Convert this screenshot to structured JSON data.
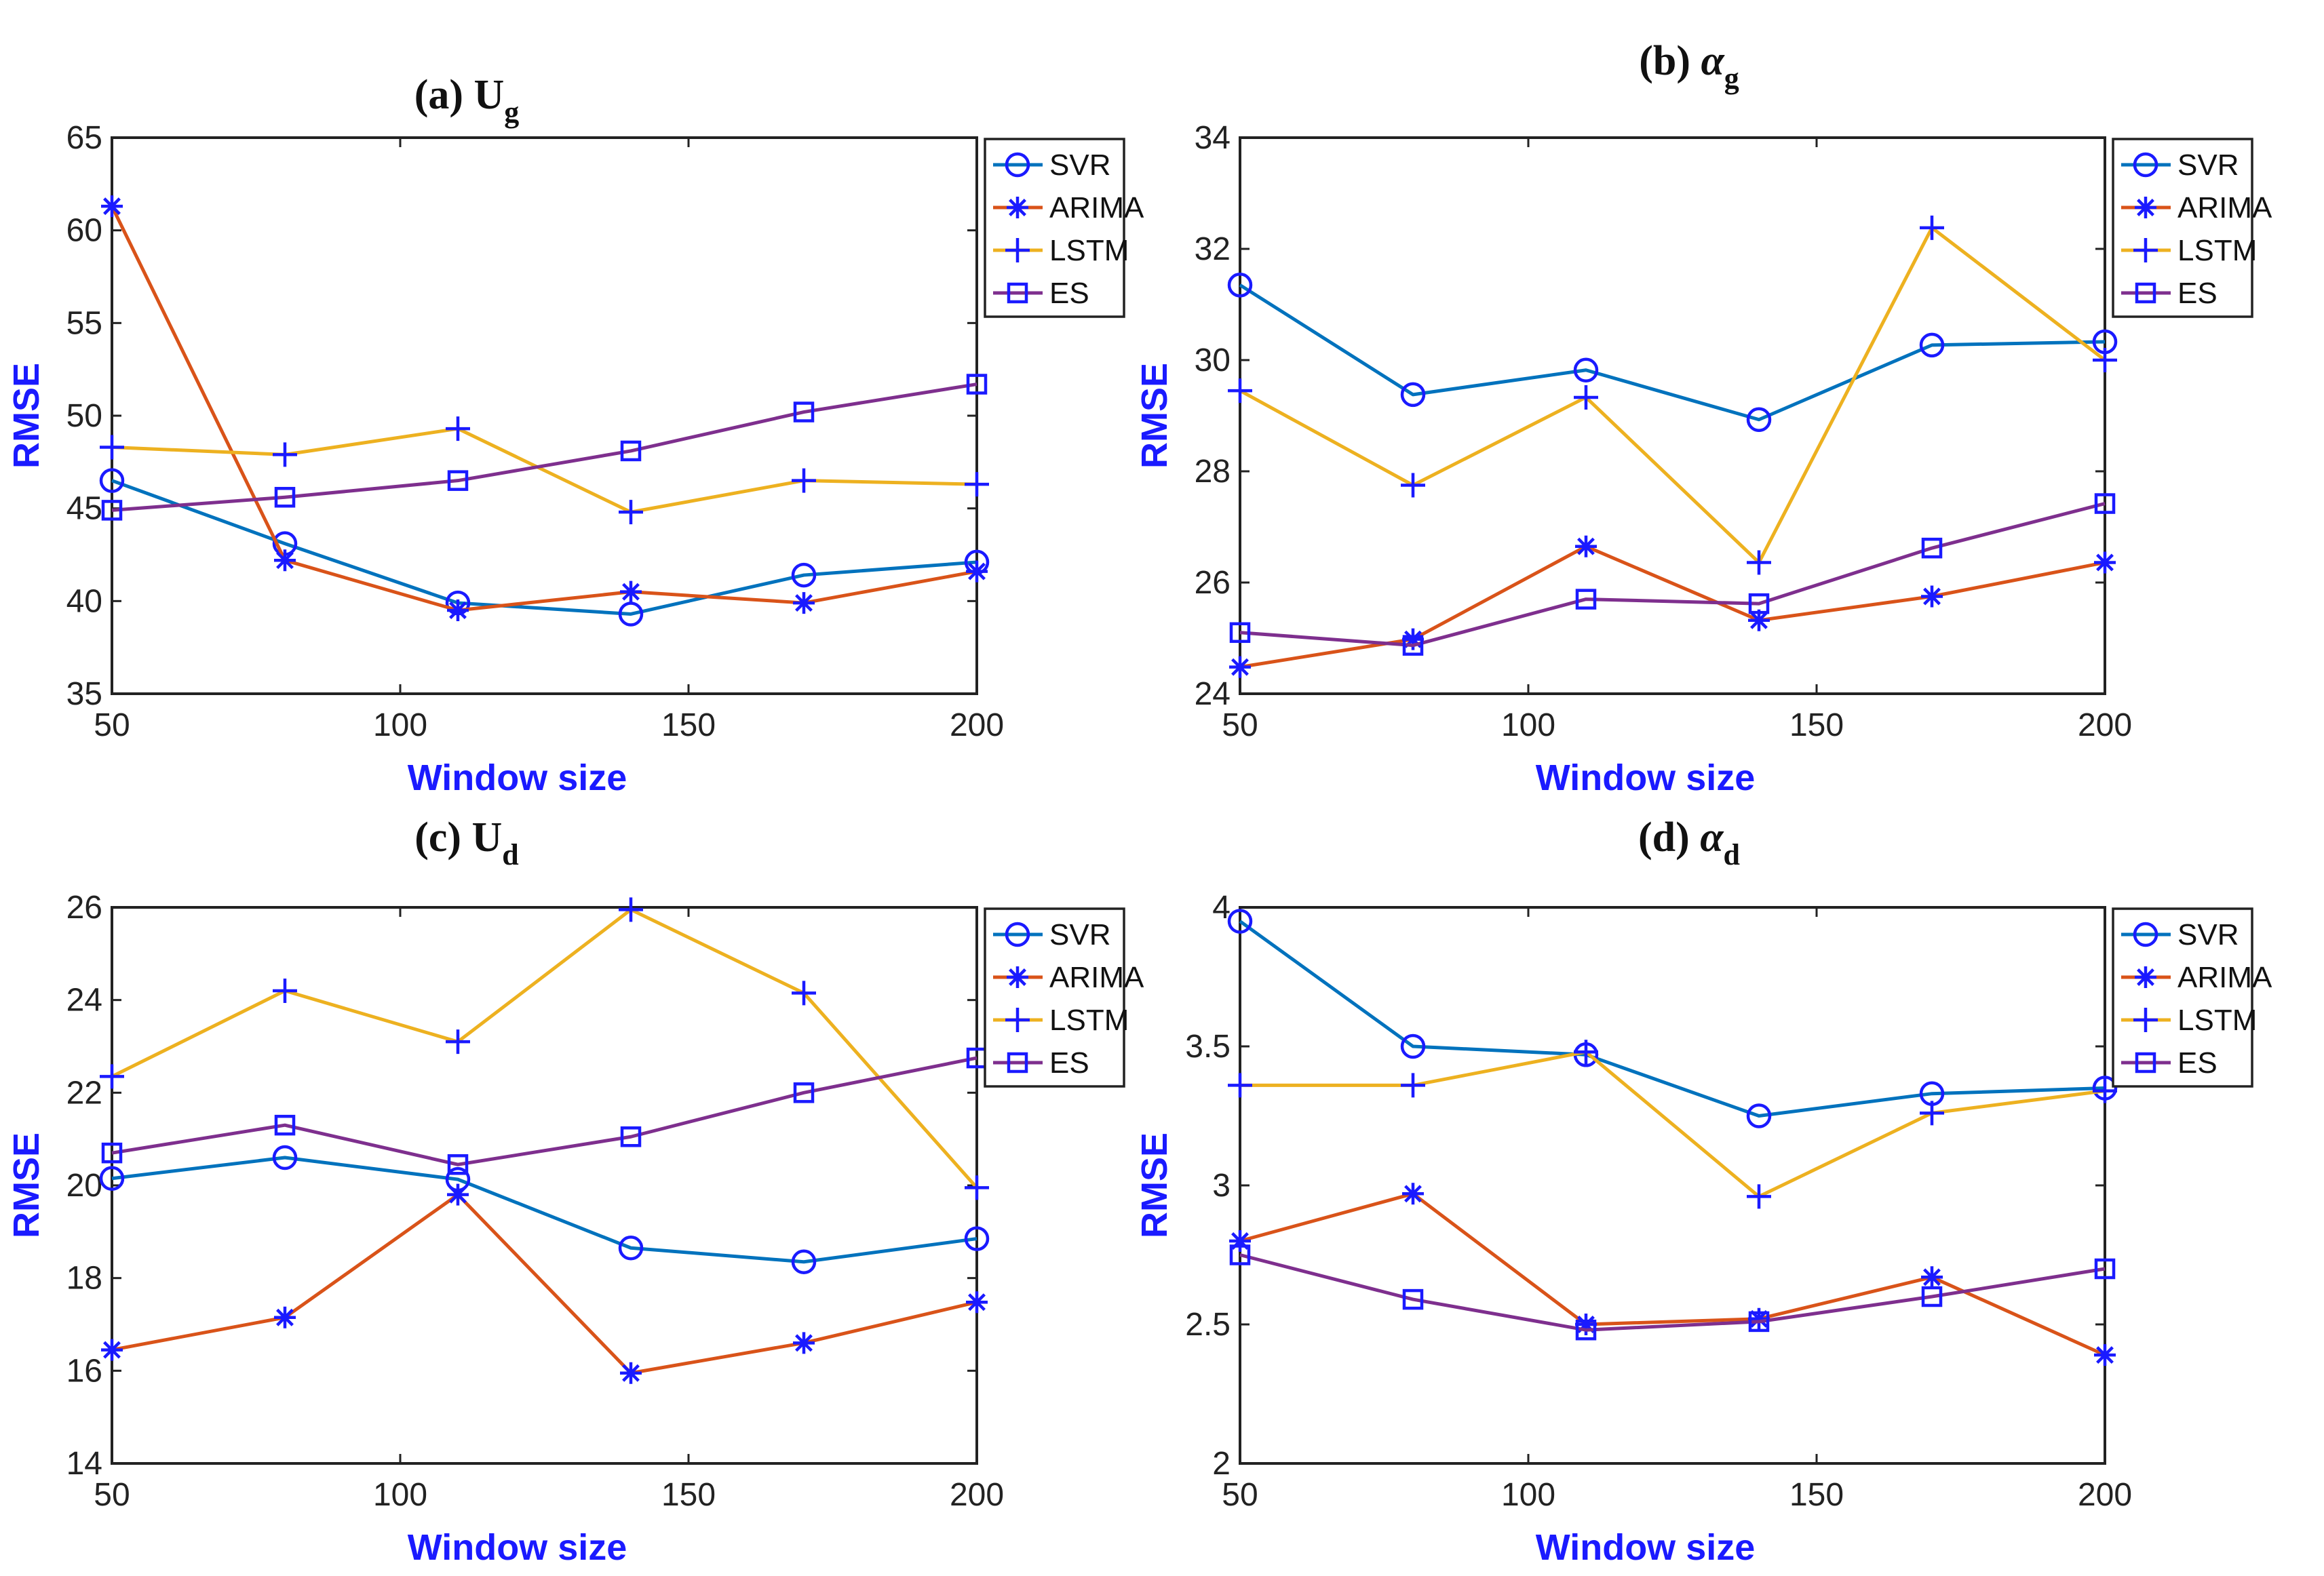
{
  "chart_data": [
    {
      "type": "line",
      "panel_label": "(a)",
      "title": "U",
      "title_subscript": "g",
      "title_italic": false,
      "xlabel": "Window size",
      "ylabel": "RMSE",
      "x": [
        50,
        80,
        110,
        140,
        170,
        200
      ],
      "xlim": [
        50,
        200
      ],
      "ylim": [
        35,
        65
      ],
      "xticks": [
        "50",
        "100",
        "150",
        "200"
      ],
      "yticks": [
        "35",
        "40",
        "45",
        "50",
        "55",
        "60",
        "65"
      ],
      "series": [
        {
          "name": "SVR",
          "values": [
            46.5,
            43.1,
            39.9,
            39.3,
            41.4,
            42.1
          ]
        },
        {
          "name": "ARIMA",
          "values": [
            61.3,
            42.2,
            39.5,
            40.5,
            39.9,
            41.6
          ]
        },
        {
          "name": "LSTM",
          "values": [
            48.3,
            47.9,
            49.3,
            44.8,
            46.5,
            46.3
          ]
        },
        {
          "name": "ES",
          "values": [
            44.9,
            45.6,
            46.5,
            48.1,
            50.2,
            51.7
          ]
        }
      ]
    },
    {
      "type": "line",
      "panel_label": "(b)",
      "title": "α",
      "title_subscript": "g",
      "title_italic": true,
      "xlabel": "Window size",
      "ylabel": "RMSE",
      "x": [
        50,
        80,
        110,
        140,
        170,
        200
      ],
      "xlim": [
        50,
        200
      ],
      "ylim": [
        24,
        34
      ],
      "xticks": [
        "50",
        "100",
        "150",
        "200"
      ],
      "yticks": [
        "24",
        "26",
        "28",
        "30",
        "32",
        "34"
      ],
      "series": [
        {
          "name": "SVR",
          "values": [
            31.35,
            29.38,
            29.82,
            28.93,
            30.27,
            30.33
          ]
        },
        {
          "name": "ARIMA",
          "values": [
            24.48,
            24.98,
            26.65,
            25.32,
            25.75,
            26.36
          ]
        },
        {
          "name": "LSTM",
          "values": [
            29.45,
            27.75,
            29.33,
            26.36,
            32.38,
            30.0
          ]
        },
        {
          "name": "ES",
          "values": [
            25.1,
            24.87,
            25.7,
            25.62,
            26.62,
            27.42
          ]
        }
      ]
    },
    {
      "type": "line",
      "panel_label": "(c)",
      "title": "U",
      "title_subscript": "d",
      "title_italic": false,
      "xlabel": "Window size",
      "ylabel": "RMSE",
      "x": [
        50,
        80,
        110,
        140,
        170,
        200
      ],
      "xlim": [
        50,
        200
      ],
      "ylim": [
        14,
        26
      ],
      "xticks": [
        "50",
        "100",
        "150",
        "200"
      ],
      "yticks": [
        "14",
        "16",
        "18",
        "20",
        "22",
        "24",
        "26"
      ],
      "series": [
        {
          "name": "SVR",
          "values": [
            20.15,
            20.6,
            20.13,
            18.65,
            18.35,
            18.85
          ]
        },
        {
          "name": "ARIMA",
          "values": [
            16.45,
            17.15,
            19.8,
            15.95,
            16.6,
            17.48
          ]
        },
        {
          "name": "LSTM",
          "values": [
            22.35,
            24.2,
            23.1,
            25.95,
            24.15,
            19.95
          ]
        },
        {
          "name": "ES",
          "values": [
            20.7,
            21.3,
            20.45,
            21.05,
            22.0,
            22.75
          ]
        }
      ]
    },
    {
      "type": "line",
      "panel_label": "(d)",
      "title": "α",
      "title_subscript": "d",
      "title_italic": true,
      "xlabel": "Window size",
      "ylabel": "RMSE",
      "x": [
        50,
        80,
        110,
        140,
        170,
        200
      ],
      "xlim": [
        50,
        200
      ],
      "ylim": [
        2,
        4
      ],
      "xticks": [
        "50",
        "100",
        "150",
        "200"
      ],
      "yticks": [
        "2",
        "2.5",
        "3",
        "3.5",
        "4"
      ],
      "series": [
        {
          "name": "SVR",
          "values": [
            3.95,
            3.5,
            3.47,
            3.25,
            3.33,
            3.35
          ]
        },
        {
          "name": "ARIMA",
          "values": [
            2.8,
            2.97,
            2.5,
            2.52,
            2.67,
            2.39
          ]
        },
        {
          "name": "LSTM",
          "values": [
            3.36,
            3.36,
            3.48,
            2.96,
            3.26,
            3.34
          ]
        },
        {
          "name": "ES",
          "values": [
            2.75,
            2.59,
            2.48,
            2.51,
            2.6,
            2.7
          ]
        }
      ]
    }
  ],
  "series_colors": {
    "SVR": "#0072BD",
    "ARIMA": "#D95319",
    "LSTM": "#EDB120",
    "ES": "#7E2F8E"
  },
  "marker_color": "#1a1aff",
  "marker_shapes": {
    "SVR": "circle",
    "ARIMA": "asterisk",
    "LSTM": "plus",
    "ES": "square"
  }
}
